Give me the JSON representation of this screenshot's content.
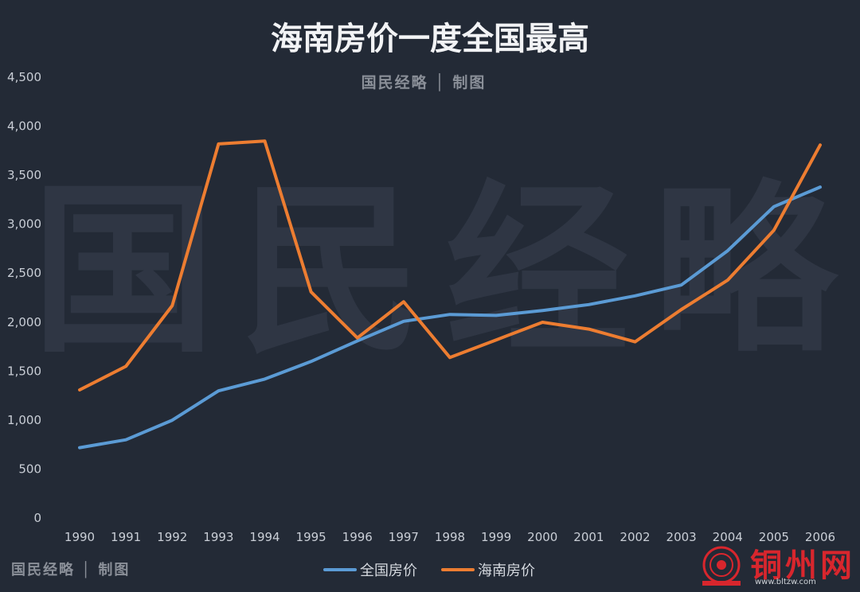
{
  "header": {
    "title": "海南房价一度全国最高",
    "credit": "国民经略 │ 制图"
  },
  "watermark": "国民经略",
  "footer": {
    "credit": "国民经略 │ 制图",
    "site_name": "铜州网",
    "site_url": "www.bltzw.com"
  },
  "colors": {
    "background": "#232a36",
    "national": "#5b9bd5",
    "hainan": "#ed7d31",
    "text": "#c9ced6",
    "brand_red": "#d8262d"
  },
  "chart_data": {
    "type": "line",
    "title": "海南房价一度全国最高",
    "xlabel": "",
    "ylabel": "",
    "ylim": [
      0,
      4500
    ],
    "yticks": [
      0,
      500,
      1000,
      1500,
      2000,
      2500,
      3000,
      3500,
      4000,
      4500
    ],
    "ytick_labels": [
      "0",
      "500",
      "1,000",
      "1,500",
      "2,000",
      "2,500",
      "3,000",
      "3,500",
      "4,000",
      "4,500"
    ],
    "grid": false,
    "legend": "bottom",
    "categories": [
      "1990",
      "1991",
      "1992",
      "1993",
      "1994",
      "1995",
      "1996",
      "1997",
      "1998",
      "1999",
      "2000",
      "2001",
      "2002",
      "2003",
      "2004",
      "2005",
      "2006"
    ],
    "series": [
      {
        "name": "全国房价",
        "color": "#5b9bd5",
        "values": [
          710,
          790,
          990,
          1290,
          1410,
          1590,
          1800,
          2000,
          2070,
          2060,
          2110,
          2170,
          2260,
          2370,
          2720,
          3170,
          3370
        ]
      },
      {
        "name": "海南房价",
        "color": "#ed7d31",
        "values": [
          1300,
          1540,
          2160,
          3810,
          3840,
          2300,
          1830,
          2200,
          1630,
          1810,
          1990,
          1920,
          1790,
          2120,
          2420,
          2930,
          3800
        ]
      }
    ]
  }
}
